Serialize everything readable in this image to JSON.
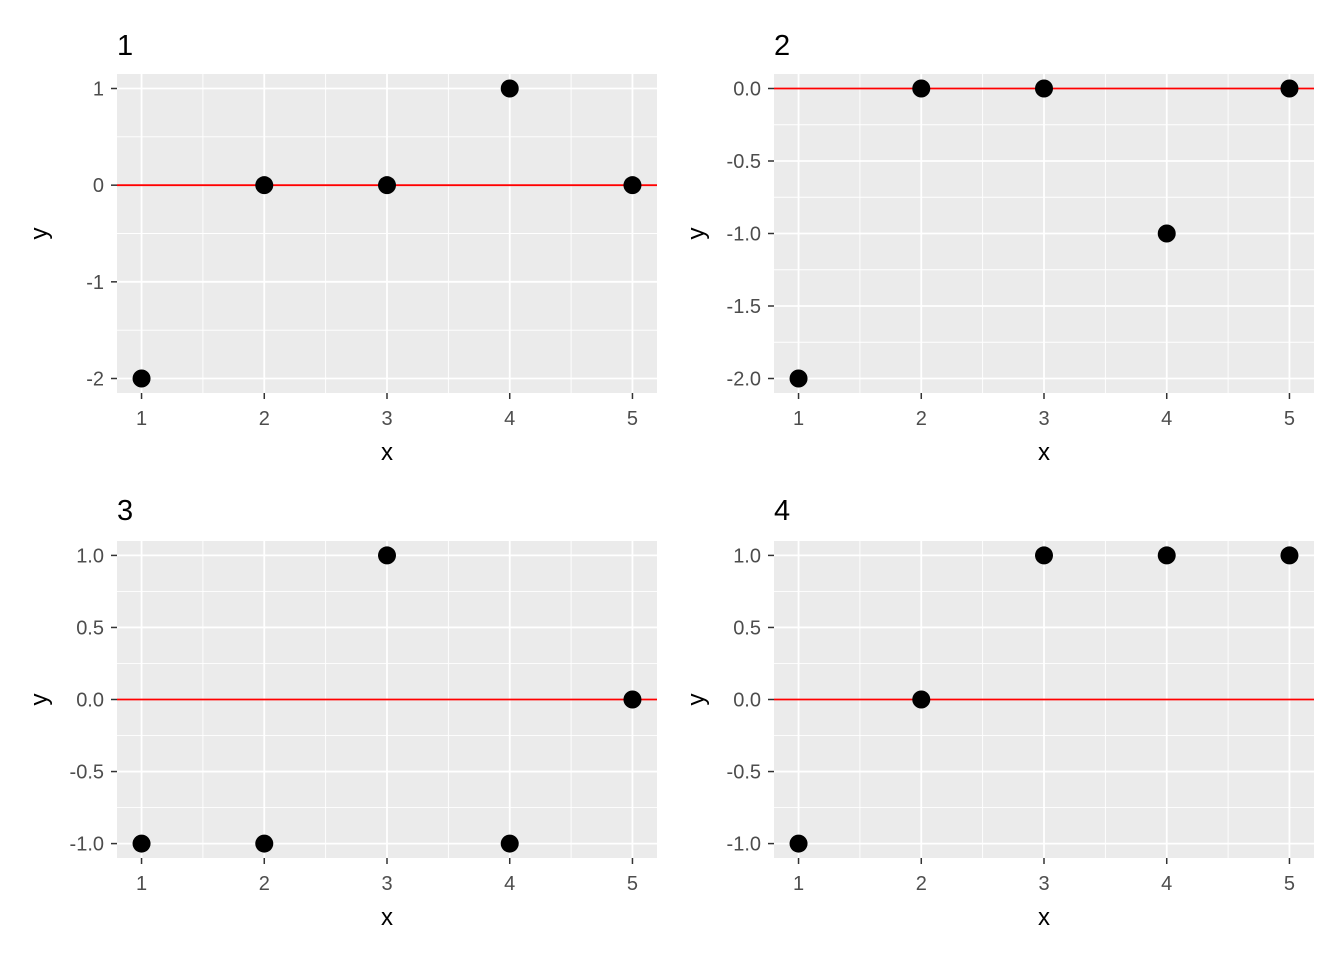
{
  "chart_data": [
    {
      "type": "scatter",
      "title": "1",
      "xlabel": "x",
      "ylabel": "y",
      "x": [
        1,
        2,
        3,
        4,
        5
      ],
      "y": [
        -2,
        0,
        0,
        1,
        0
      ],
      "xlim": [
        0.8,
        5.2
      ],
      "ylim": [
        -2.15,
        1.15
      ],
      "xticks": [
        1,
        2,
        3,
        4,
        5
      ],
      "xtick_labels": [
        "1",
        "2",
        "3",
        "4",
        "5"
      ],
      "yticks": [
        -2,
        -1,
        0,
        1
      ],
      "ytick_labels": [
        "-2",
        "-1",
        "0",
        "1"
      ],
      "hline": 0,
      "hline_color": "#ff0000",
      "point_color": "#000000",
      "panel_background": "#ebebeb",
      "grid": true
    },
    {
      "type": "scatter",
      "title": "2",
      "xlabel": "x",
      "ylabel": "y",
      "x": [
        1,
        2,
        3,
        4,
        5
      ],
      "y": [
        -2,
        0,
        0,
        -1,
        0
      ],
      "xlim": [
        0.8,
        5.2
      ],
      "ylim": [
        -2.1,
        0.1
      ],
      "xticks": [
        1,
        2,
        3,
        4,
        5
      ],
      "xtick_labels": [
        "1",
        "2",
        "3",
        "4",
        "5"
      ],
      "yticks": [
        -2.0,
        -1.5,
        -1.0,
        -0.5,
        0.0
      ],
      "ytick_labels": [
        "-2.0",
        "-1.5",
        "-1.0",
        "-0.5",
        "0.0"
      ],
      "hline": 0,
      "hline_color": "#ff0000",
      "point_color": "#000000",
      "panel_background": "#ebebeb",
      "grid": true
    },
    {
      "type": "scatter",
      "title": "3",
      "xlabel": "x",
      "ylabel": "y",
      "x": [
        1,
        2,
        3,
        4,
        5
      ],
      "y": [
        -1,
        -1,
        1,
        -1,
        0
      ],
      "xlim": [
        0.8,
        5.2
      ],
      "ylim": [
        -1.1,
        1.1
      ],
      "xticks": [
        1,
        2,
        3,
        4,
        5
      ],
      "xtick_labels": [
        "1",
        "2",
        "3",
        "4",
        "5"
      ],
      "yticks": [
        -1.0,
        -0.5,
        0.0,
        0.5,
        1.0
      ],
      "ytick_labels": [
        "-1.0",
        "-0.5",
        "0.0",
        "0.5",
        "1.0"
      ],
      "hline": 0,
      "hline_color": "#ff0000",
      "point_color": "#000000",
      "panel_background": "#ebebeb",
      "grid": true
    },
    {
      "type": "scatter",
      "title": "4",
      "xlabel": "x",
      "ylabel": "y",
      "x": [
        1,
        2,
        3,
        4,
        5
      ],
      "y": [
        -1,
        0,
        1,
        1,
        1
      ],
      "xlim": [
        0.8,
        5.2
      ],
      "ylim": [
        -1.1,
        1.1
      ],
      "xticks": [
        1,
        2,
        3,
        4,
        5
      ],
      "xtick_labels": [
        "1",
        "2",
        "3",
        "4",
        "5"
      ],
      "yticks": [
        -1.0,
        -0.5,
        0.0,
        0.5,
        1.0
      ],
      "ytick_labels": [
        "-1.0",
        "-0.5",
        "0.0",
        "0.5",
        "1.0"
      ],
      "hline": 0,
      "hline_color": "#ff0000",
      "point_color": "#000000",
      "panel_background": "#ebebeb",
      "grid": true
    }
  ]
}
